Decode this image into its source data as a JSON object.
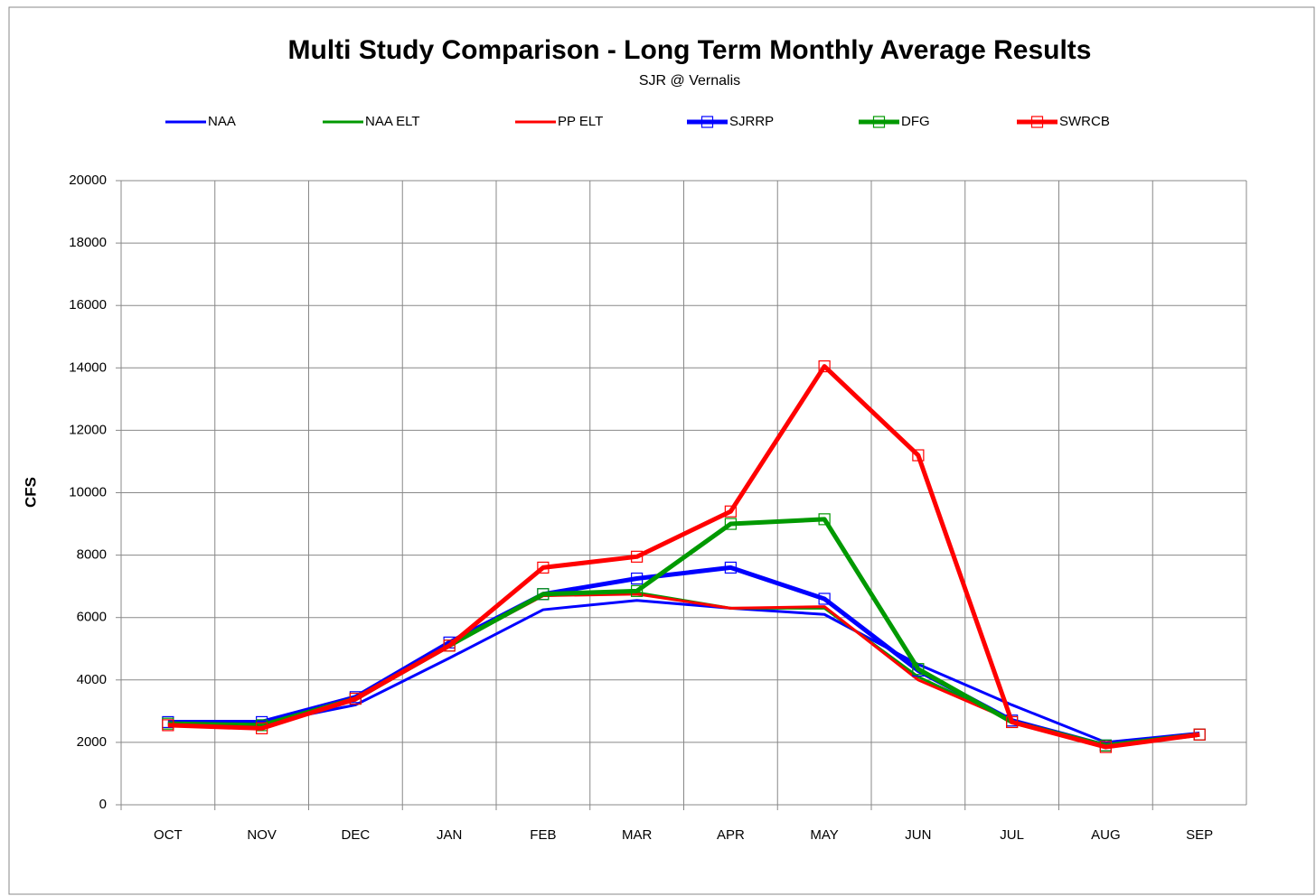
{
  "chart_data": {
    "type": "line",
    "title": "Multi Study Comparison - Long Term Monthly Average Results",
    "subtitle": "SJR @ Vernalis",
    "y_label": "CFS",
    "categories": [
      "OCT",
      "NOV",
      "DEC",
      "JAN",
      "FEB",
      "MAR",
      "APR",
      "MAY",
      "JUN",
      "JUL",
      "AUG",
      "SEP"
    ],
    "ylim": [
      0,
      20000
    ],
    "yticks": [
      0,
      2000,
      4000,
      6000,
      8000,
      10000,
      12000,
      14000,
      16000,
      18000,
      20000
    ],
    "grid": true,
    "legend": "top",
    "series": [
      {
        "name": "NAA",
        "color": "#0000ff",
        "line_width": 3,
        "marker": "none",
        "values": [
          2650,
          2600,
          3200,
          4700,
          6250,
          6550,
          6300,
          6100,
          4500,
          3200,
          2000,
          2300
        ]
      },
      {
        "name": "NAA ELT",
        "color": "#009900",
        "line_width": 3,
        "marker": "none",
        "values": [
          2600,
          2500,
          3400,
          5100,
          6700,
          6800,
          6300,
          6300,
          4100,
          2700,
          1900,
          2250
        ]
      },
      {
        "name": "PP ELT",
        "color": "#ff0000",
        "line_width": 3,
        "marker": "none",
        "values": [
          2550,
          2450,
          3350,
          5100,
          6700,
          6750,
          6300,
          6350,
          4000,
          2700,
          1850,
          2250
        ]
      },
      {
        "name": "SJRRP",
        "color": "#0000ff",
        "line_width": 5,
        "marker": "square",
        "values": [
          2650,
          2650,
          3450,
          5200,
          6750,
          7250,
          7600,
          6600,
          4300,
          2700,
          1900,
          2250
        ]
      },
      {
        "name": "DFG",
        "color": "#009900",
        "line_width": 5,
        "marker": "square",
        "values": [
          2600,
          2550,
          3400,
          5100,
          6750,
          6850,
          9000,
          9150,
          4350,
          2650,
          1900,
          2250
        ]
      },
      {
        "name": "SWRCB",
        "color": "#ff0000",
        "line_width": 5,
        "marker": "square",
        "values": [
          2550,
          2450,
          3400,
          5100,
          7600,
          7950,
          9400,
          14050,
          11200,
          2650,
          1850,
          2250
        ]
      }
    ]
  }
}
